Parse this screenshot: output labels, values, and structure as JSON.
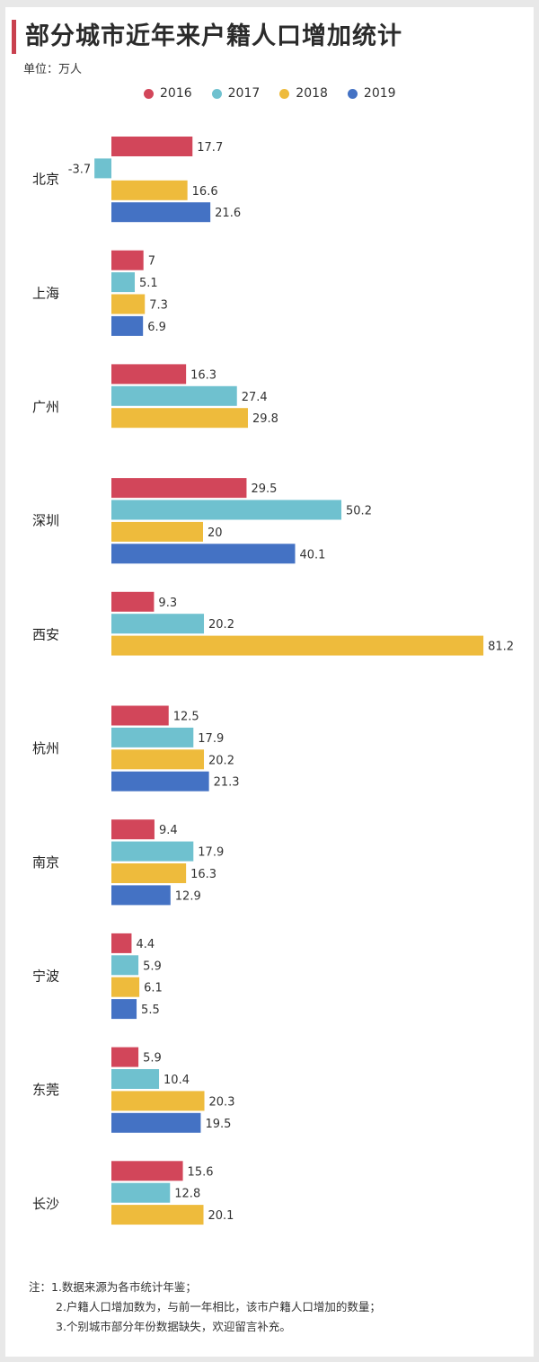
{
  "title": "部分城市近年来户籍人口增加统计",
  "unit": "单位：万人",
  "colors": {
    "2016": "#d2465a",
    "2017": "#6fc1cf",
    "2018": "#eebb3c",
    "2019": "#4472c4"
  },
  "chart_data": {
    "type": "bar",
    "orientation": "horizontal",
    "categories": [
      "北京",
      "上海",
      "广州",
      "深圳",
      "西安",
      "杭州",
      "南京",
      "宁波",
      "东莞",
      "长沙"
    ],
    "series": [
      {
        "name": "2016",
        "values": [
          17.7,
          7,
          16.3,
          29.5,
          9.3,
          12.5,
          9.4,
          4.4,
          5.9,
          15.6
        ]
      },
      {
        "name": "2017",
        "values": [
          -3.7,
          5.1,
          27.4,
          50.2,
          20.2,
          17.9,
          17.9,
          5.9,
          10.4,
          12.8
        ]
      },
      {
        "name": "2018",
        "values": [
          16.6,
          7.3,
          29.8,
          20,
          81.2,
          20.2,
          16.3,
          6.1,
          20.3,
          20.1
        ]
      },
      {
        "name": "2019",
        "values": [
          21.6,
          6.9,
          null,
          40.1,
          null,
          21.3,
          12.9,
          5.5,
          19.5,
          null
        ]
      }
    ],
    "legend_position": "top",
    "grid": false
  },
  "notes": [
    "注：1.数据来源为各市统计年鉴；",
    "2.户籍人口增加数为，与前一年相比，该市户籍人口增加的数量；",
    "3.个别城市部分年份数据缺失，欢迎留言补充。"
  ]
}
